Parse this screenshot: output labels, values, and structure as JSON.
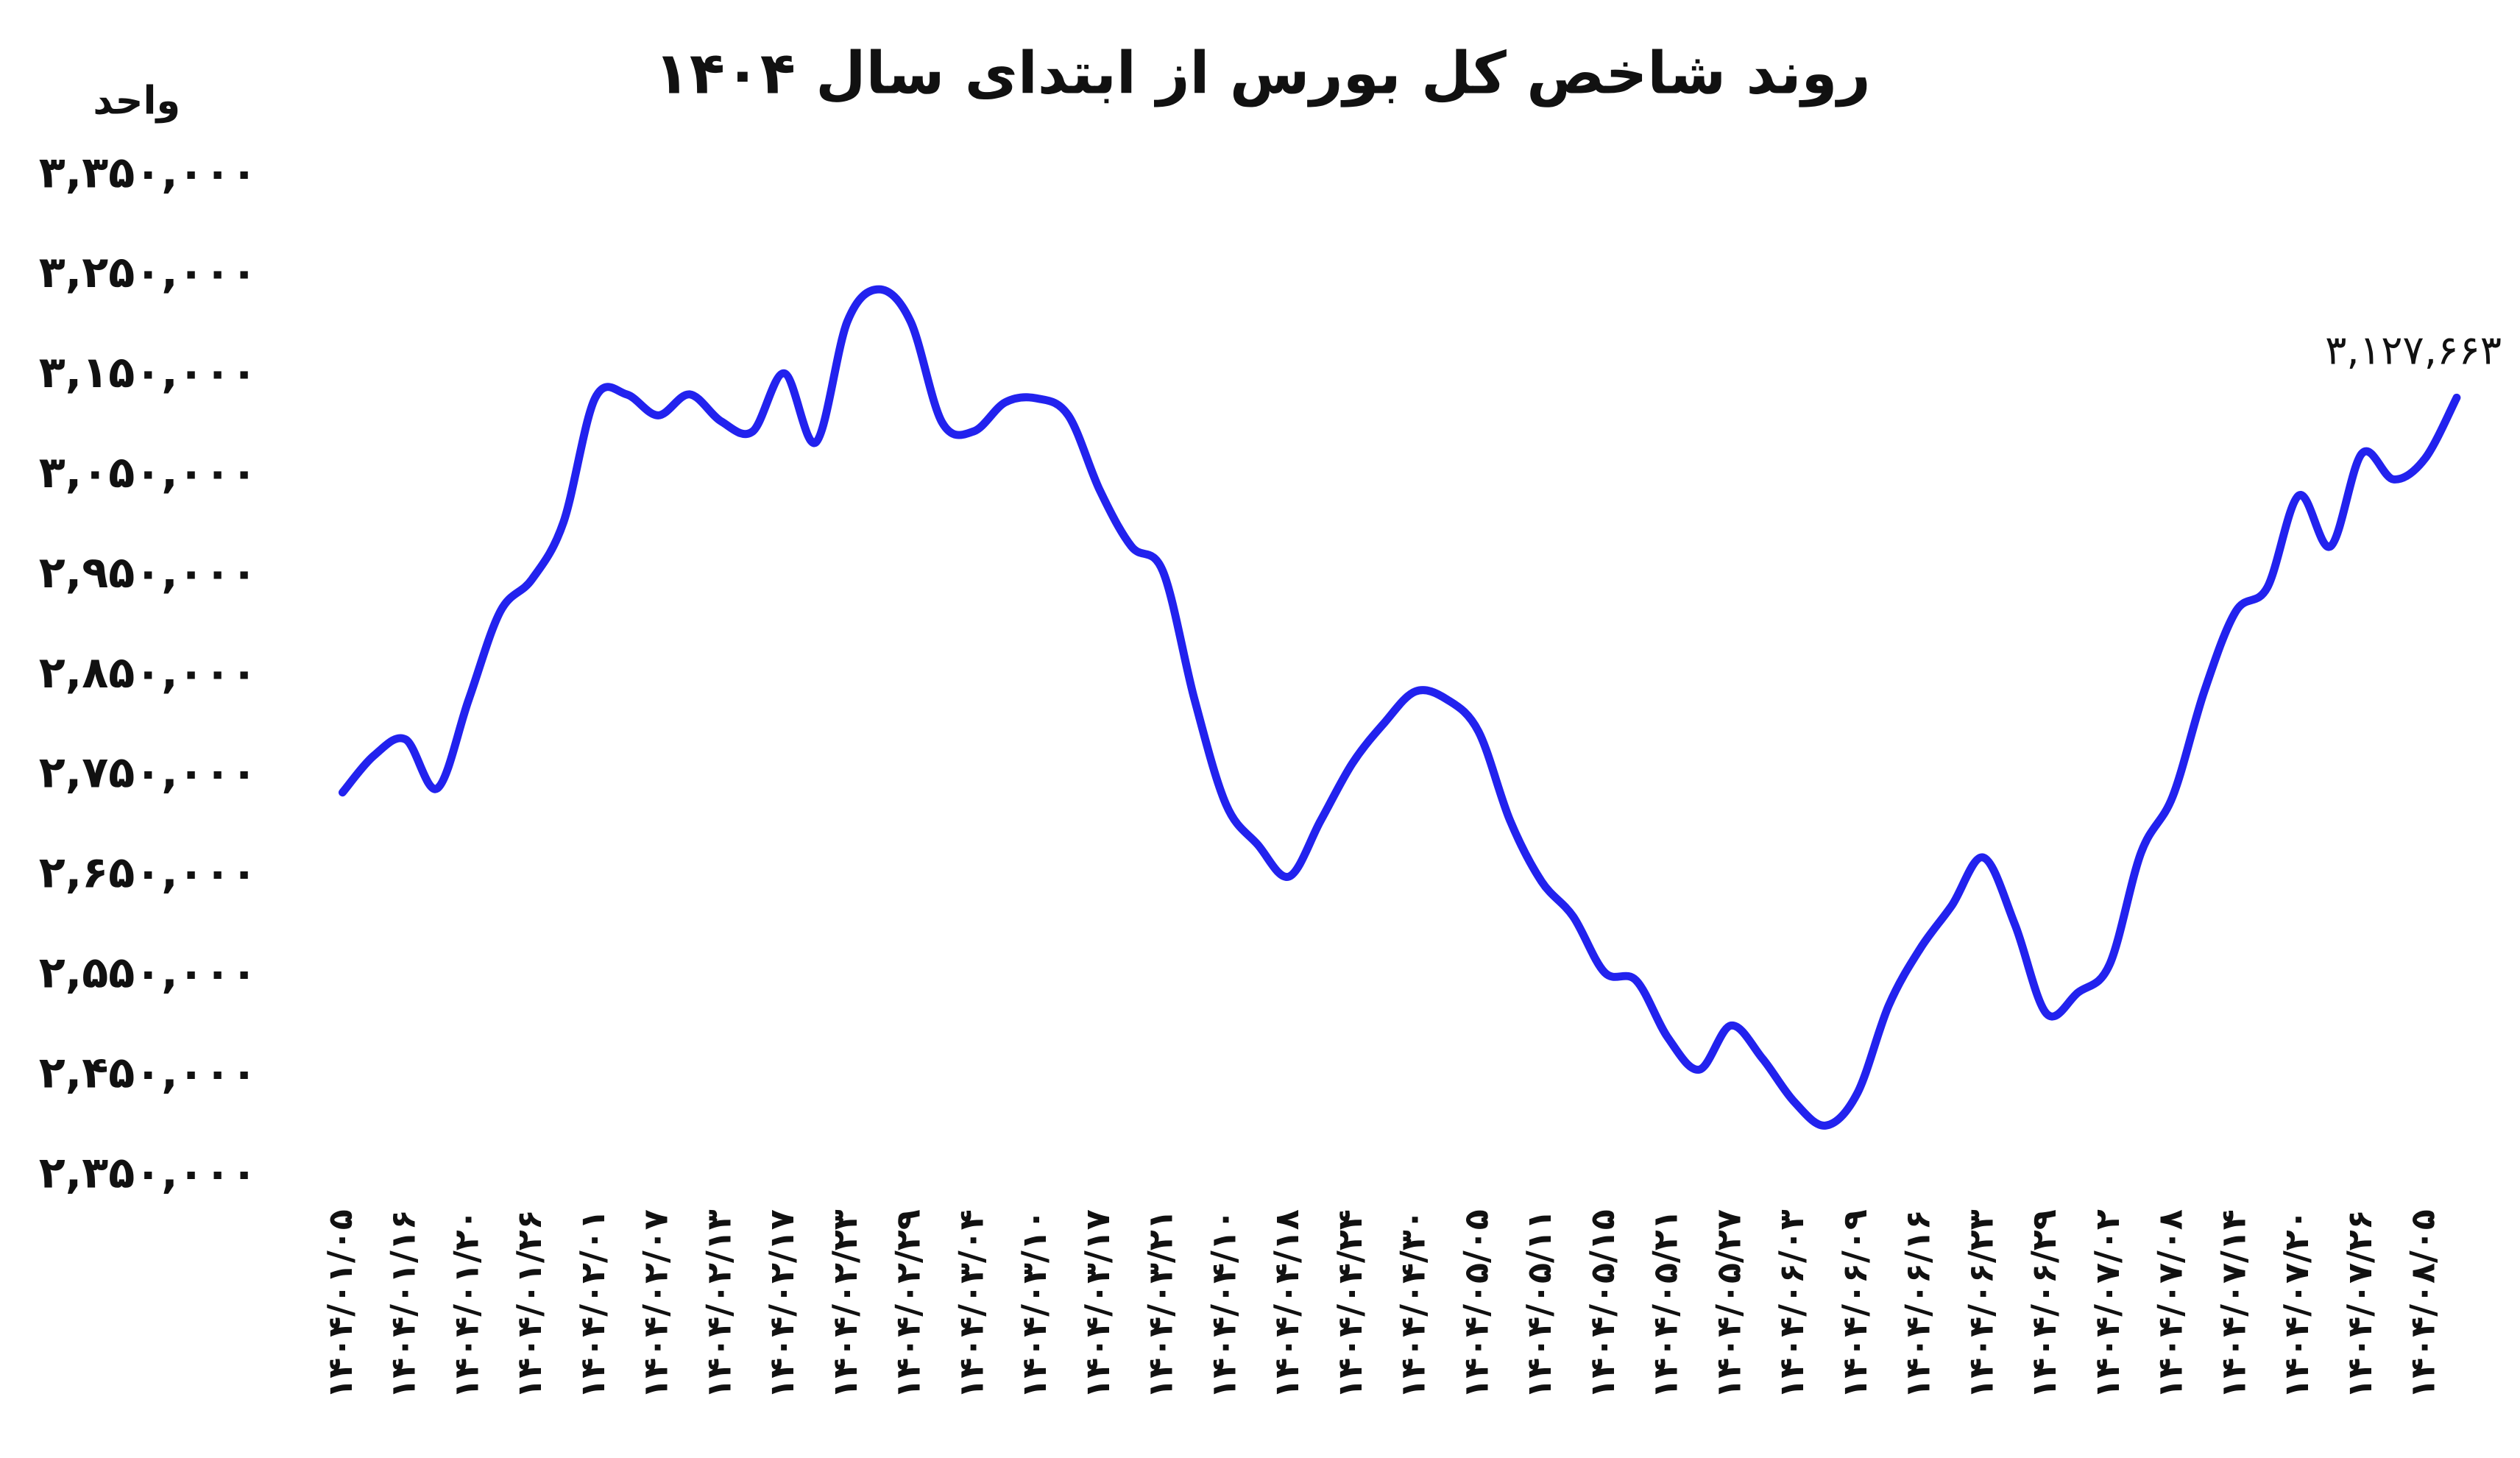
{
  "chart_data": {
    "type": "line",
    "title": "روند شاخص کل بورس از ابتدای سال ۱۴۰۴",
    "y_label": "واحد",
    "categories": [
      "۱۴۰۴/۰۱/۰۵",
      null,
      "۱۴۰۴/۰۱/۱۶",
      null,
      "۱۴۰۴/۰۱/۲۰",
      null,
      "۱۴۰۴/۰۱/۲۶",
      null,
      "۱۴۰۴/۰۲/۰۱",
      null,
      "۱۴۰۴/۰۲/۰۷",
      null,
      "۱۴۰۴/۰۲/۱۳",
      null,
      "۱۴۰۴/۰۲/۱۷",
      null,
      "۱۴۰۴/۰۲/۲۳",
      null,
      "۱۴۰۴/۰۲/۲۹",
      null,
      "۱۴۰۴/۰۳/۰۴",
      null,
      "۱۴۰۴/۰۳/۱۰",
      null,
      "۱۴۰۴/۰۳/۱۷",
      null,
      "۱۴۰۴/۰۳/۲۱",
      null,
      "۱۴۰۴/۰۴/۱۰",
      null,
      "۱۴۰۴/۰۴/۱۸",
      null,
      "۱۴۰۴/۰۴/۲۴",
      null,
      "۱۴۰۴/۰۴/۳۰",
      null,
      "۱۴۰۴/۰۵/۰۵",
      null,
      "۱۴۰۴/۰۵/۱۱",
      null,
      "۱۴۰۴/۰۵/۱۵",
      null,
      "۱۴۰۴/۰۵/۲۱",
      null,
      "۱۴۰۴/۰۵/۲۷",
      null,
      "۱۴۰۴/۰۶/۰۳",
      null,
      "۱۴۰۴/۰۶/۰۹",
      null,
      "۱۴۰۴/۰۶/۱۶",
      null,
      "۱۴۰۴/۰۶/۲۳",
      null,
      "۱۴۰۴/۰۶/۲۹",
      null,
      "۱۴۰۴/۰۷/۰۲",
      null,
      "۱۴۰۴/۰۷/۰۸",
      null,
      "۱۴۰۴/۰۷/۱۴",
      null,
      "۱۴۰۴/۰۷/۲۰",
      null,
      "۱۴۰۴/۰۷/۲۶",
      null,
      "۱۴۰۴/۰۸/۰۵",
      null
    ],
    "series": [
      {
        "name": "شاخص کل",
        "color": "#2222ee",
        "values": [
          2733000,
          2770000,
          2786000,
          2737000,
          2826000,
          2914000,
          2946000,
          3003000,
          3127000,
          3131000,
          3110000,
          3131000,
          3104000,
          3094000,
          3152000,
          3083000,
          3204000,
          3236000,
          3204000,
          3103000,
          3094000,
          3123000,
          3127000,
          3110000,
          3035000,
          2979000,
          2954000,
          2826000,
          2721000,
          2681000,
          2649000,
          2705000,
          2762000,
          2802000,
          2834000,
          2826000,
          2794000,
          2705000,
          2644000,
          2609000,
          2553000,
          2545000,
          2488000,
          2456000,
          2500000,
          2467000,
          2424000,
          2400000,
          2432000,
          2520000,
          2577000,
          2620000,
          2668000,
          2601000,
          2512000,
          2533000,
          2561000,
          2673000,
          2729000,
          2834000,
          2914000,
          2938000,
          3030000,
          2979000,
          3072000,
          3046000,
          3067000,
          3127663
        ],
        "value_labels": [
          null,
          null,
          null,
          null,
          null,
          null,
          null,
          null,
          null,
          null,
          null,
          null,
          null,
          null,
          null,
          null,
          null,
          null,
          null,
          null,
          null,
          null,
          null,
          null,
          null,
          null,
          null,
          null,
          null,
          null,
          null,
          null,
          null,
          null,
          null,
          null,
          null,
          null,
          null,
          null,
          null,
          null,
          null,
          null,
          null,
          null,
          null,
          null,
          null,
          null,
          null,
          null,
          null,
          null,
          null,
          null,
          null,
          null,
          null,
          null,
          null,
          null,
          null,
          null,
          null,
          null,
          null,
          "۳,۱۲۷,۶۶۳"
        ]
      }
    ],
    "ylim": [
      2350000,
      3350000
    ],
    "yticks": [
      {
        "value": 2350000,
        "label": "۲,۳۵۰,۰۰۰"
      },
      {
        "value": 2450000,
        "label": "۲,۴۵۰,۰۰۰"
      },
      {
        "value": 2550000,
        "label": "۲,۵۵۰,۰۰۰"
      },
      {
        "value": 2650000,
        "label": "۲,۶۵۰,۰۰۰"
      },
      {
        "value": 2750000,
        "label": "۲,۷۵۰,۰۰۰"
      },
      {
        "value": 2850000,
        "label": "۲,۸۵۰,۰۰۰"
      },
      {
        "value": 2950000,
        "label": "۲,۹۵۰,۰۰۰"
      },
      {
        "value": 3050000,
        "label": "۳,۰۵۰,۰۰۰"
      },
      {
        "value": 3150000,
        "label": "۳,۱۵۰,۰۰۰"
      },
      {
        "value": 3250000,
        "label": "۳,۲۵۰,۰۰۰"
      },
      {
        "value": 3350000,
        "label": "۳,۳۵۰,۰۰۰"
      }
    ],
    "grid": false
  }
}
